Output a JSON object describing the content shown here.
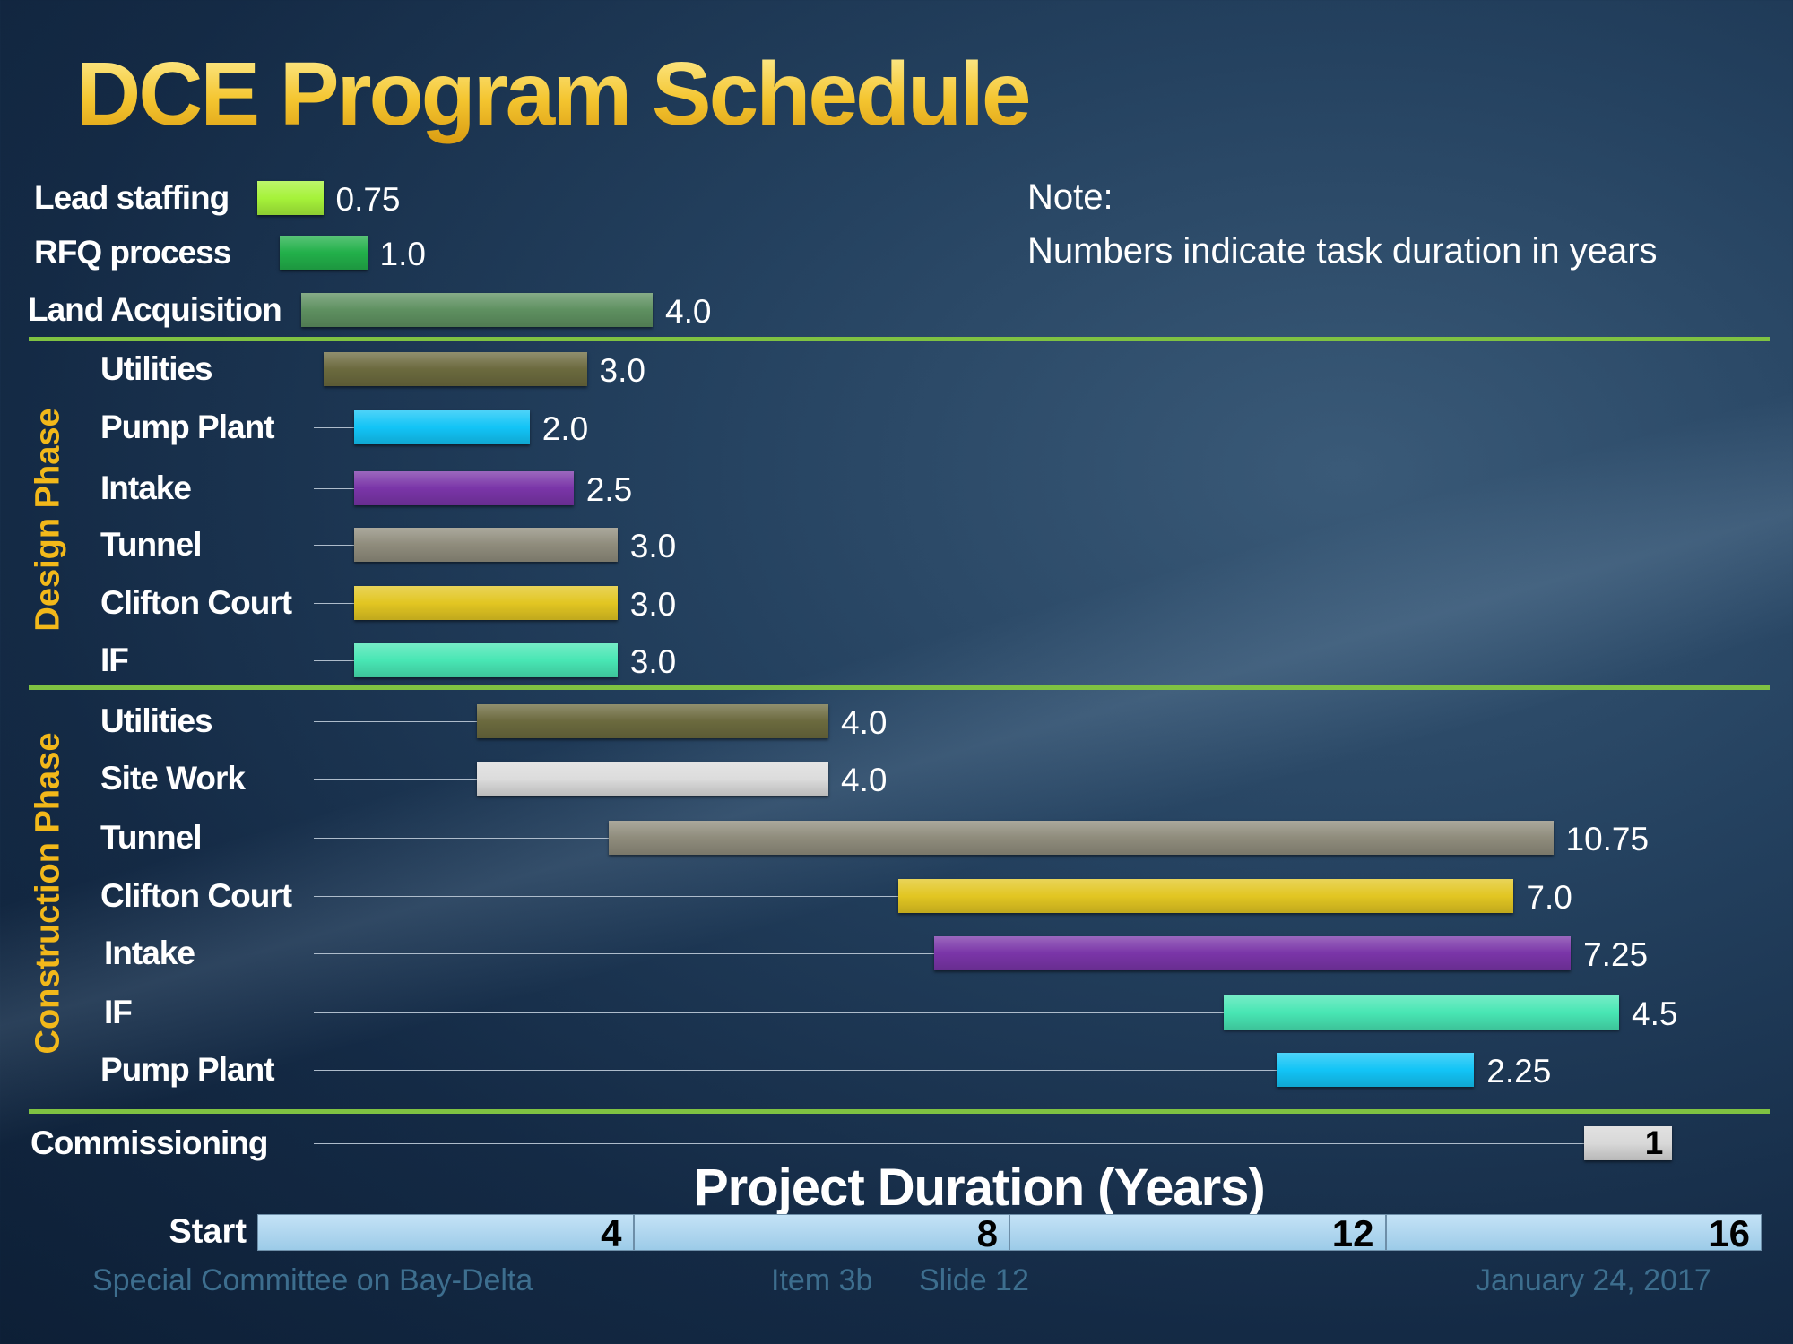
{
  "chart_data": {
    "type": "bar",
    "subtype": "gantt",
    "title": "DCE Program Schedule",
    "note_heading": "Note:",
    "note_text": "Numbers indicate task duration in years",
    "xlabel": "Project Duration (Years)",
    "xlim": [
      0,
      16
    ],
    "x_start_label": "Start",
    "x_ticks": [
      "4",
      "8",
      "12",
      "16"
    ],
    "groups": [
      {
        "name": "",
        "tasks": [
          {
            "label": "Lead staffing",
            "start": 0,
            "duration": 0.75,
            "value_label": "0.75",
            "color": "#a6f23a"
          },
          {
            "label": "RFQ process",
            "start": 0.25,
            "duration": 1.0,
            "value_label": "1.0",
            "color": "#22b04a"
          },
          {
            "label": "Land Acquisition",
            "start": 0.5,
            "duration": 4.0,
            "value_label": "4.0",
            "color": "#5e9060"
          }
        ]
      },
      {
        "name": "Design Phase",
        "tasks": [
          {
            "label": "Utilities",
            "start": 0.75,
            "duration": 3.0,
            "value_label": "3.0",
            "color": "#6b6a3e"
          },
          {
            "label": "Pump Plant",
            "start": 1.1,
            "duration": 2.0,
            "value_label": "2.0",
            "color": "#12c4f6"
          },
          {
            "label": "Intake",
            "start": 1.1,
            "duration": 2.5,
            "value_label": "2.5",
            "color": "#7a35a8"
          },
          {
            "label": "Tunnel",
            "start": 1.1,
            "duration": 3.0,
            "value_label": "3.0",
            "color": "#8f8c7c"
          },
          {
            "label": "Clifton Court",
            "start": 1.1,
            "duration": 3.0,
            "value_label": "3.0",
            "color": "#e2c622"
          },
          {
            "label": "IF",
            "start": 1.1,
            "duration": 3.0,
            "value_label": "3.0",
            "color": "#48e6b4"
          }
        ]
      },
      {
        "name": "Construction Phase",
        "tasks": [
          {
            "label": "Utilities",
            "start": 2.5,
            "duration": 4.0,
            "value_label": "4.0",
            "color": "#6b6a3e"
          },
          {
            "label": "Site Work",
            "start": 2.5,
            "duration": 4.0,
            "value_label": "4.0",
            "color": "#dcdcdc"
          },
          {
            "label": "Tunnel",
            "start": 4.0,
            "duration": 10.75,
            "value_label": "10.75",
            "color": "#8f8c7c"
          },
          {
            "label": "Clifton Court",
            "start": 7.3,
            "duration": 7.0,
            "value_label": "7.0",
            "color": "#e2c622"
          },
          {
            "label": "Intake",
            "start": 7.7,
            "duration": 7.25,
            "value_label": "7.25",
            "color": "#7a35a8"
          },
          {
            "label": "IF",
            "start": 11.0,
            "duration": 4.5,
            "value_label": "4.5",
            "color": "#48e6b4"
          },
          {
            "label": "Pump Plant",
            "start": 11.6,
            "duration": 2.25,
            "value_label": "2.25",
            "color": "#12c4f6"
          }
        ]
      },
      {
        "name": "",
        "tasks": [
          {
            "label": "Commissioning",
            "start": 15.1,
            "duration": 1,
            "value_label": "1",
            "color": "#d8d8d8"
          }
        ]
      }
    ]
  },
  "footer": {
    "committee": "Special Committee on Bay-Delta",
    "item": "Item 3b",
    "slide": "Slide 12",
    "date": "January 24, 2017"
  },
  "colors": {
    "title": "#f4c530",
    "separator": "#7fc242",
    "phase": "#f2b81a"
  }
}
